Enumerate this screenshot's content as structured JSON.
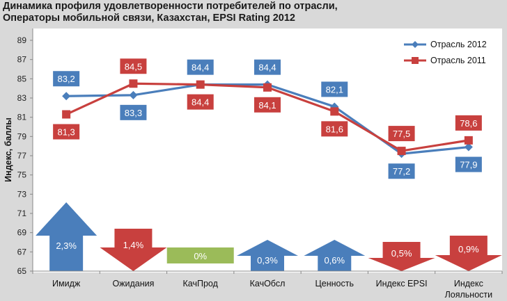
{
  "title_line1": "Динамика профиля удовлетворенности потребителей по отрасли,",
  "title_line2": "Операторы мобильной связи, Казахстан, EPSI Rating 2012",
  "chart_data": {
    "type": "line",
    "ylabel": "Индекс, баллы",
    "ylim": [
      65,
      89
    ],
    "yticks": [
      65,
      67,
      69,
      71,
      73,
      75,
      77,
      79,
      81,
      83,
      85,
      87,
      89
    ],
    "categories": [
      "Имидж",
      "Ожидания",
      "КачПрод",
      "КачОбсл",
      "Ценность",
      "Индекс EPSI",
      [
        "Индекс",
        "Лояльности"
      ]
    ],
    "series": [
      {
        "name": "Отрасль 2012",
        "color": "#4a7ebb",
        "marker": "diamond",
        "values": [
          83.2,
          83.3,
          84.4,
          84.4,
          82.1,
          77.2,
          77.9
        ],
        "labels": [
          "83,2",
          "83,3",
          "84,4",
          "84,4",
          "82,1",
          "77,2",
          "77,9"
        ]
      },
      {
        "name": "Отрасль 2011",
        "color": "#c8403e",
        "marker": "square",
        "values": [
          81.3,
          84.5,
          84.4,
          84.1,
          81.6,
          77.5,
          78.6
        ],
        "labels": [
          "81,3",
          "84,5",
          "84,4",
          "84,1",
          "81,6",
          "77,5",
          "78,6"
        ]
      }
    ],
    "changes": [
      {
        "label": "2,3%",
        "direction": "up",
        "color": "#4a7ebb"
      },
      {
        "label": "1,4%",
        "direction": "down",
        "color": "#c8403e"
      },
      {
        "label": "0%",
        "direction": "flat",
        "color": "#9bbb59"
      },
      {
        "label": "0,3%",
        "direction": "up",
        "color": "#4a7ebb"
      },
      {
        "label": "0,6%",
        "direction": "up",
        "color": "#4a7ebb"
      },
      {
        "label": "0,5%",
        "direction": "down",
        "color": "#c8403e"
      },
      {
        "label": "0,9%",
        "direction": "down",
        "color": "#c8403e"
      }
    ],
    "legend_position": "top-right",
    "grid": false
  }
}
